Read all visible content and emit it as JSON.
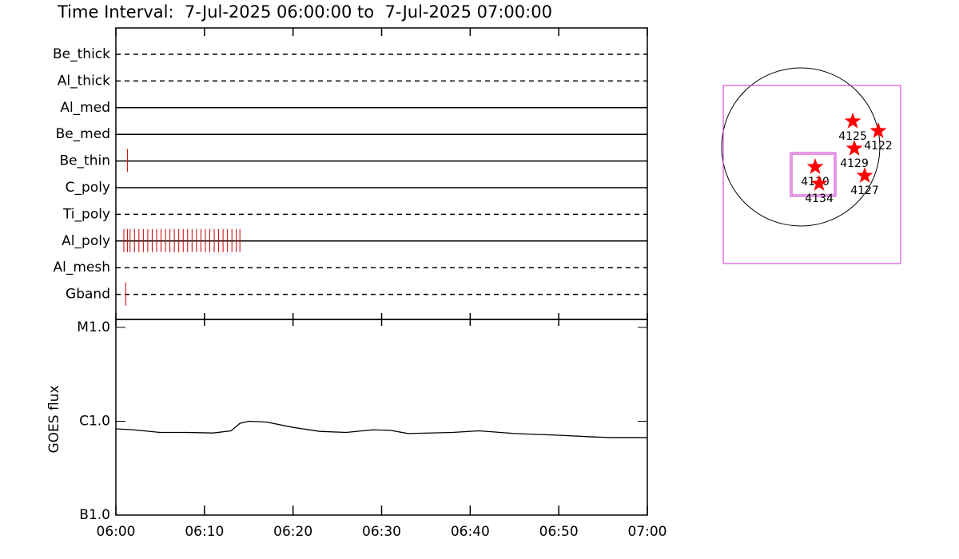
{
  "chart_data": [
    {
      "type": "timeline",
      "title": "Time Interval:  7-Jul-2025 06:00:00 to  7-Jul-2025 07:00:00",
      "xlim": [
        0,
        60
      ],
      "rows": [
        {
          "name": "Be_thick",
          "style": "dashed",
          "events": []
        },
        {
          "name": "Al_thick",
          "style": "dashed",
          "events": []
        },
        {
          "name": "Al_med",
          "style": "solid",
          "events": []
        },
        {
          "name": "Be_med",
          "style": "solid",
          "events": []
        },
        {
          "name": "Be_thin",
          "style": "solid",
          "events": [
            1.3
          ]
        },
        {
          "name": "C_poly",
          "style": "solid",
          "events": []
        },
        {
          "name": "Ti_poly",
          "style": "dashed",
          "events": []
        },
        {
          "name": "Al_poly",
          "style": "solid",
          "events": [
            0.9,
            1.3,
            1.6,
            2.1,
            2.6,
            3.1,
            3.6,
            4.1,
            4.6,
            5.1,
            5.6,
            6.1,
            6.6,
            7.1,
            7.6,
            8.1,
            8.6,
            9.1,
            9.6,
            10.1,
            10.6,
            11.1,
            11.6,
            12.1,
            12.6,
            13.1,
            13.6,
            14.0
          ]
        },
        {
          "name": "Al_mesh",
          "style": "dashed",
          "events": []
        },
        {
          "name": "Gband",
          "style": "dashed",
          "events": [
            1.1
          ]
        }
      ],
      "event_color": "#cc0000"
    },
    {
      "type": "line",
      "y_label": "GOES flux",
      "log_scale": true,
      "xlim": [
        0,
        60
      ],
      "xticks": [
        {
          "value": 0,
          "label": "06:00"
        },
        {
          "value": 10,
          "label": "06:10"
        },
        {
          "value": 20,
          "label": "06:20"
        },
        {
          "value": 30,
          "label": "06:30"
        },
        {
          "value": 40,
          "label": "06:40"
        },
        {
          "value": 50,
          "label": "06:50"
        },
        {
          "value": 60,
          "label": "07:00"
        }
      ],
      "ylim": [
        1e-07,
        1e-05
      ],
      "yticks": [
        {
          "value": 1e-07,
          "label": "B1.0"
        },
        {
          "value": 1e-06,
          "label": "C1.0"
        },
        {
          "value": 1e-05,
          "label": "M1.0"
        }
      ],
      "x": [
        0,
        2,
        5,
        8,
        11,
        13,
        14,
        15,
        17,
        20,
        23,
        26,
        29,
        31,
        33,
        38,
        41,
        45,
        50,
        54,
        56,
        60
      ],
      "values": [
        8.3e-07,
        8.1e-07,
        7.6e-07,
        7.6e-07,
        7.5e-07,
        7.9e-07,
        9.5e-07,
        1e-06,
        9.8e-07,
        8.6e-07,
        7.8e-07,
        7.6e-07,
        8.1e-07,
        8e-07,
        7.4e-07,
        7.6e-07,
        7.9e-07,
        7.4e-07,
        7.1e-07,
        6.8e-07,
        6.7e-07,
        6.7e-07
      ],
      "color": "#000000"
    },
    {
      "type": "scatter",
      "xlim": [
        -945,
        945
      ],
      "ylim": [
        -945,
        945
      ],
      "color": "#ff0000",
      "labels": [
        "4125",
        "4122",
        "4129",
        "4127",
        "4130",
        "4134"
      ],
      "x": [
        621,
        926,
        640,
        764,
        172,
        220
      ],
      "values": [
        306,
        191,
        -19,
        -344,
        -239,
        -439
      ]
    }
  ]
}
